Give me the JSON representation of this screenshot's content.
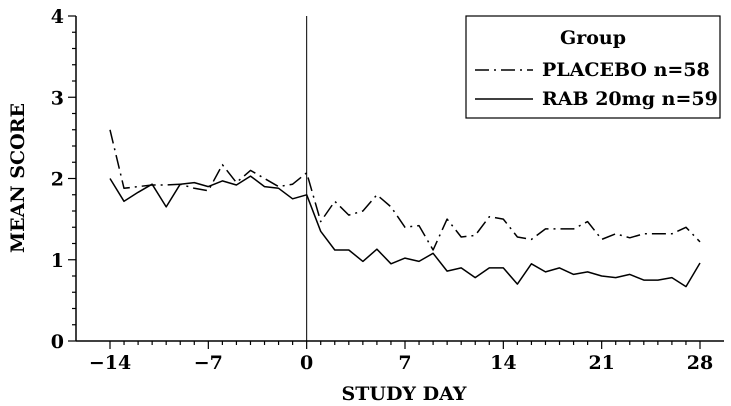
{
  "chart_data": {
    "type": "line",
    "title": "",
    "xlabel": "STUDY DAY",
    "ylabel": "MEAN SCORE",
    "xlim": [
      -14,
      28
    ],
    "ylim": [
      0,
      4
    ],
    "xticks": [
      -14,
      -7,
      0,
      7,
      14,
      21,
      28
    ],
    "xtick_labels": [
      "−14",
      "−7",
      "0",
      "7",
      "14",
      "21",
      "28"
    ],
    "yticks": [
      0,
      1,
      2,
      3,
      4
    ],
    "ytick_labels": [
      "0",
      "1",
      "2",
      "3",
      "4"
    ],
    "reference_line_x": 0,
    "grid": false,
    "legend": {
      "title": "Group",
      "placement": "top-right"
    },
    "x": [
      -14,
      -13,
      -12,
      -11,
      -10,
      -9,
      -8,
      -7,
      -6,
      -5,
      -4,
      -3,
      -2,
      -1,
      0,
      1,
      2,
      3,
      4,
      5,
      6,
      7,
      8,
      9,
      10,
      11,
      12,
      13,
      14,
      15,
      16,
      17,
      18,
      19,
      20,
      21,
      22,
      23,
      24,
      25,
      26,
      27,
      28
    ],
    "series": [
      {
        "name": "PLACEBO n=58",
        "style": "dash-dot",
        "color": "#000000",
        "values": [
          2.6,
          1.88,
          1.9,
          1.92,
          1.92,
          1.93,
          1.88,
          1.85,
          2.17,
          1.95,
          2.1,
          2.0,
          1.9,
          1.93,
          2.07,
          1.47,
          1.72,
          1.55,
          1.6,
          1.8,
          1.65,
          1.4,
          1.42,
          1.12,
          1.5,
          1.28,
          1.3,
          1.53,
          1.5,
          1.28,
          1.25,
          1.38,
          1.38,
          1.38,
          1.47,
          1.25,
          1.32,
          1.27,
          1.32,
          1.32,
          1.32,
          1.4,
          1.22
        ]
      },
      {
        "name": "RAB 20mg n=59",
        "style": "solid",
        "color": "#000000",
        "values": [
          2.0,
          1.72,
          1.83,
          1.93,
          1.65,
          1.93,
          1.95,
          1.9,
          1.97,
          1.92,
          2.03,
          1.9,
          1.88,
          1.75,
          1.8,
          1.35,
          1.12,
          1.12,
          0.98,
          1.13,
          0.95,
          1.02,
          0.98,
          1.08,
          0.86,
          0.9,
          0.78,
          0.9,
          0.9,
          0.7,
          0.95,
          0.85,
          0.9,
          0.82,
          0.85,
          0.8,
          0.78,
          0.82,
          0.75,
          0.75,
          0.78,
          0.67,
          0.96
        ]
      }
    ]
  }
}
